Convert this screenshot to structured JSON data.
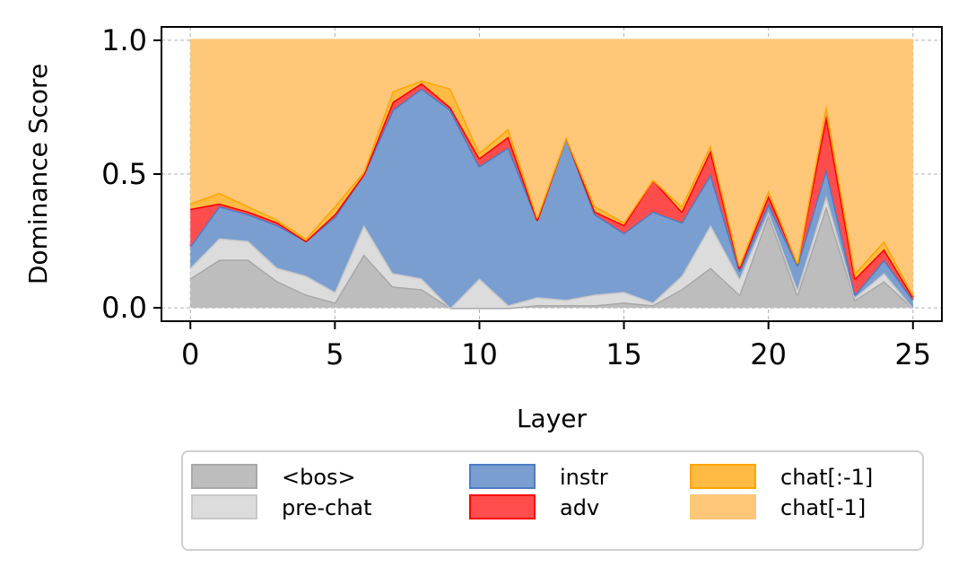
{
  "chart_data": {
    "type": "area",
    "stacked": true,
    "xlabel": "Layer",
    "ylabel": "Dominance Score",
    "xlim": [
      -1,
      26
    ],
    "ylim": [
      -0.05,
      1.05
    ],
    "xticks": [
      0,
      5,
      10,
      15,
      20,
      25
    ],
    "yticks": [
      0.0,
      0.5,
      1.0
    ],
    "ytick_labels": [
      "0.0",
      "0.5",
      "1.0"
    ],
    "grid": true,
    "legend_position": "bottom-center",
    "x": [
      0,
      1,
      2,
      3,
      4,
      5,
      6,
      7,
      8,
      9,
      10,
      11,
      12,
      13,
      14,
      15,
      16,
      17,
      18,
      19,
      20,
      21,
      22,
      23,
      24,
      25
    ],
    "series": [
      {
        "name": "<bos>",
        "color": "#bdbdbd",
        "line": "#a8a8a8",
        "values": [
          0.11,
          0.18,
          0.18,
          0.1,
          0.05,
          0.02,
          0.2,
          0.08,
          0.07,
          0.0,
          0.0,
          0.0,
          0.01,
          0.01,
          0.01,
          0.02,
          0.01,
          0.07,
          0.15,
          0.05,
          0.35,
          0.05,
          0.38,
          0.03,
          0.1,
          0.0
        ]
      },
      {
        "name": "pre-chat",
        "color": "#dcdcdc",
        "line": "#c8c8c8",
        "values": [
          0.04,
          0.08,
          0.07,
          0.05,
          0.07,
          0.04,
          0.11,
          0.05,
          0.04,
          0.0,
          0.11,
          0.01,
          0.03,
          0.02,
          0.04,
          0.04,
          0.01,
          0.05,
          0.16,
          0.06,
          0.01,
          0.02,
          0.04,
          0.01,
          0.03,
          0.0
        ]
      },
      {
        "name": "instr",
        "color": "#7b9ed0",
        "line": "#4e7bc2",
        "values": [
          0.08,
          0.12,
          0.1,
          0.16,
          0.13,
          0.28,
          0.19,
          0.61,
          0.71,
          0.74,
          0.42,
          0.59,
          0.29,
          0.61,
          0.3,
          0.22,
          0.34,
          0.2,
          0.19,
          0.03,
          0.03,
          0.09,
          0.1,
          0.01,
          0.05,
          0.03
        ]
      },
      {
        "name": "adv",
        "color": "#ff4d4d",
        "line": "#ff0000",
        "values": [
          0.14,
          0.01,
          0.01,
          0.01,
          0.0,
          0.01,
          0.0,
          0.03,
          0.02,
          0.01,
          0.03,
          0.04,
          0.0,
          0.0,
          0.01,
          0.03,
          0.12,
          0.04,
          0.09,
          0.01,
          0.03,
          0.01,
          0.2,
          0.06,
          0.04,
          0.01
        ]
      },
      {
        "name": "chat[:-1]",
        "color": "#ffbb44",
        "line": "#ffa500",
        "values": [
          0.02,
          0.04,
          0.02,
          0.01,
          0.01,
          0.03,
          0.01,
          0.04,
          0.01,
          0.07,
          0.02,
          0.03,
          0.01,
          0.0,
          0.02,
          0.01,
          0.0,
          0.02,
          0.02,
          0.01,
          0.02,
          0.0,
          0.04,
          0.02,
          0.03,
          0.01
        ]
      },
      {
        "name": "chat[-1]",
        "color": "#ffc777",
        "line": "#ffc777",
        "values": [
          0.61,
          0.57,
          0.62,
          0.67,
          0.74,
          0.62,
          0.49,
          0.19,
          0.15,
          0.18,
          0.42,
          0.33,
          0.66,
          0.36,
          0.62,
          0.68,
          0.52,
          0.62,
          0.39,
          0.84,
          0.56,
          0.83,
          0.24,
          0.87,
          0.75,
          0.95
        ]
      }
    ]
  }
}
